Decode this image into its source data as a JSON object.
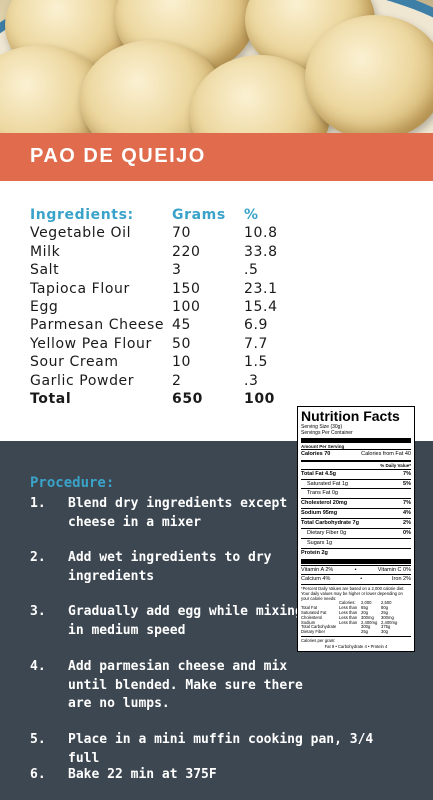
{
  "title": "PAO DE QUEIJO",
  "ingredients": {
    "headers": {
      "name": "Ingredients:",
      "grams": "Grams",
      "percent": "%"
    },
    "items": [
      {
        "name": "Vegetable Oil",
        "grams": "70",
        "percent": "10.8"
      },
      {
        "name": "Milk",
        "grams": "220",
        "percent": "33.8"
      },
      {
        "name": "Salt",
        "grams": "3",
        "percent": ".5"
      },
      {
        "name": "Tapioca Flour",
        "grams": "150",
        "percent": "23.1"
      },
      {
        "name": "Egg",
        "grams": "100",
        "percent": "15.4"
      },
      {
        "name": "Parmesan Cheese",
        "grams": "45",
        "percent": "6.9"
      },
      {
        "name": "Yellow Pea Flour",
        "grams": "50",
        "percent": "7.7"
      },
      {
        "name": "Sour Cream",
        "grams": "10",
        "percent": "1.5"
      },
      {
        "name": "Garlic Powder",
        "grams": "2",
        "percent": ".3"
      }
    ],
    "total": {
      "name": "Total",
      "grams": "650",
      "percent": "100"
    }
  },
  "nutrition": {
    "title": "Nutrition Facts",
    "serving_size": "Serving Size (30g)",
    "servings_per_container": "Servings Per Container",
    "amount_per_serving": "Amount Per Serving",
    "calories": "Calories 70",
    "calories_from_fat": "Calories from Fat 40",
    "daily_value_header": "% Daily Value*",
    "rows": [
      {
        "label": "Total Fat 4.5g",
        "value": "7%",
        "bold": true,
        "indent": false
      },
      {
        "label": "Saturated Fat 1g",
        "value": "5%",
        "bold": false,
        "indent": true
      },
      {
        "label": "Trans Fat 0g",
        "value": "",
        "bold": false,
        "indent": true
      },
      {
        "label": "Cholesterol 20mg",
        "value": "7%",
        "bold": true,
        "indent": false
      },
      {
        "label": "Sodium 95mg",
        "value": "4%",
        "bold": true,
        "indent": false
      },
      {
        "label": "Total Carbohydrate 7g",
        "value": "2%",
        "bold": true,
        "indent": false
      },
      {
        "label": "Dietary Fiber 0g",
        "value": "0%",
        "bold": false,
        "indent": true
      },
      {
        "label": "Sugars 1g",
        "value": "",
        "bold": false,
        "indent": true
      },
      {
        "label": "Protein 2g",
        "value": "",
        "bold": true,
        "indent": false
      }
    ],
    "vitamins": [
      {
        "left": "Vitamin A 2%",
        "right": "Vitamin C 0%"
      },
      {
        "left": "Calcium 4%",
        "right": "Iron 2%"
      }
    ],
    "footnote": "*Percent Daily Values are based on a 2,000 calorie diet. Your daily values may be higher or lower depending on your calorie needs:",
    "dv_table": {
      "header": [
        "",
        "Calories:",
        "2,000",
        "2,500"
      ],
      "rows": [
        [
          "Total Fat",
          "Less than",
          "65g",
          "80g"
        ],
        [
          "Saturated Fat",
          "Less than",
          "20g",
          "25g"
        ],
        [
          "Cholesterol",
          "Less than",
          "300mg",
          "300mg"
        ],
        [
          "Sodium",
          "Less than",
          "2,400mg",
          "2,400mg"
        ],
        [
          "Total Carbohydrate",
          "",
          "300g",
          "375g"
        ],
        [
          "Dietary Fiber",
          "",
          "25g",
          "30g"
        ]
      ]
    },
    "calories_per_gram_label": "Calories per gram:",
    "calories_per_gram": "Fat 9  •  Carbohydrate 4  •  Protein 4"
  },
  "procedure": {
    "title": "Procedure:",
    "steps": [
      {
        "num": "1.",
        "text": "Blend dry ingredients except cheese in a mixer"
      },
      {
        "num": "2.",
        "text": "Add wet ingredients to dry ingredients"
      },
      {
        "num": "3.",
        "text": "Gradually add egg while mixing in medium speed"
      },
      {
        "num": "4.",
        "text": "Add parmesian cheese and mix until blended. Make sure there are no lumps."
      },
      {
        "num": "5.",
        "text": "Place in a mini muffin cooking pan, 3/4 full"
      },
      {
        "num": "6.",
        "text": "Bake 22 min at 375F"
      }
    ]
  }
}
